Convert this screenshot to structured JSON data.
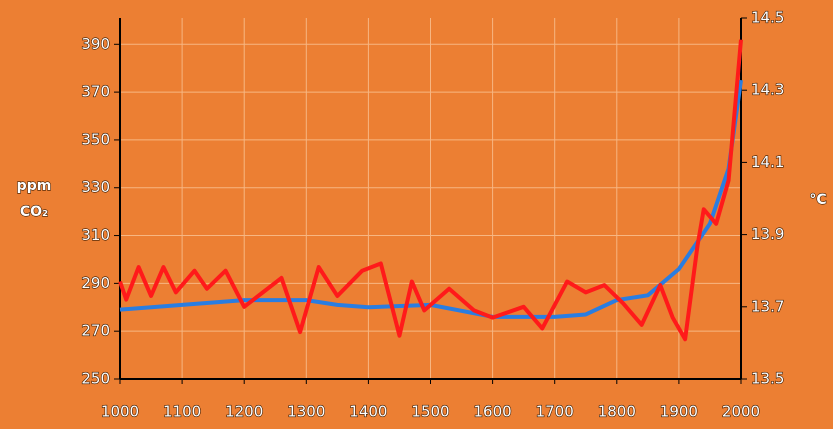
{
  "chart_data": {
    "type": "line",
    "y_label": [
      "ppm",
      "CO₂"
    ],
    "y2_label": "°C",
    "xlim": [
      1000,
      2000
    ],
    "xticks": [
      1000,
      1100,
      1200,
      1300,
      1400,
      1500,
      1600,
      1700,
      1800,
      1900,
      2000
    ],
    "ylim": [
      250,
      401
    ],
    "yticks": [
      250,
      270,
      290,
      310,
      330,
      350,
      370,
      390
    ],
    "y2lim": [
      13.5,
      14.5
    ],
    "y2ticks": [
      13.5,
      13.7,
      13.9,
      14.1,
      14.3,
      14.5
    ],
    "grid": true,
    "series": [
      {
        "color": "#2a7de1",
        "x": [
          1000,
          1100,
          1200,
          1300,
          1350,
          1400,
          1500,
          1600,
          1700,
          1750,
          1800,
          1850,
          1900,
          1950,
          1980,
          2000
        ],
        "values": [
          279,
          281,
          283,
          283,
          281,
          280,
          281,
          276,
          276,
          277,
          283,
          285,
          296,
          315,
          338,
          375
        ]
      },
      {
        "color": "#ff1a1a",
        "axis": "y2",
        "x": [
          1000,
          1010,
          1030,
          1050,
          1070,
          1090,
          1120,
          1140,
          1170,
          1200,
          1230,
          1260,
          1290,
          1320,
          1350,
          1390,
          1420,
          1450,
          1470,
          1490,
          1530,
          1570,
          1600,
          1650,
          1680,
          1720,
          1750,
          1780,
          1810,
          1840,
          1870,
          1890,
          1910,
          1930,
          1940,
          1960,
          1980,
          2000
        ],
        "values": [
          13.77,
          13.72,
          13.81,
          13.73,
          13.81,
          13.74,
          13.8,
          13.75,
          13.8,
          13.7,
          13.74,
          13.78,
          13.63,
          13.81,
          13.73,
          13.8,
          13.82,
          13.62,
          13.77,
          13.69,
          13.75,
          13.69,
          13.67,
          13.7,
          13.64,
          13.77,
          13.74,
          13.76,
          13.71,
          13.65,
          13.76,
          13.67,
          13.61,
          13.87,
          13.97,
          13.93,
          14.05,
          14.44
        ]
      }
    ]
  }
}
